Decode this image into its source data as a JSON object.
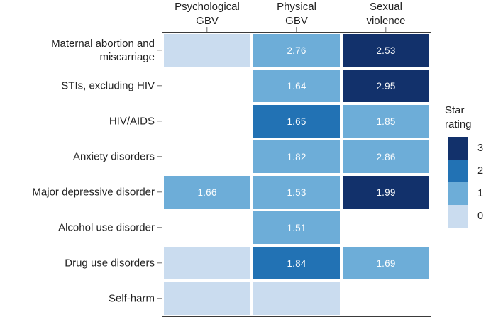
{
  "chart_data": {
    "type": "heatmap",
    "title": "",
    "columns": [
      "Psychological\nGBV",
      "Physical\nGBV",
      "Sexual\nviolence"
    ],
    "rows": [
      "Maternal abortion and\nmiscarriage",
      "STIs, excluding HIV",
      "HIV/AIDS",
      "Anxiety disorders",
      "Major depressive disorder",
      "Alcohol use disorder",
      "Drug use disorders",
      "Self-harm"
    ],
    "cells": [
      [
        {
          "rating": 0,
          "value": null
        },
        {
          "rating": 1,
          "value": 2.76
        },
        {
          "rating": 3,
          "value": 2.53
        }
      ],
      [
        null,
        {
          "rating": 1,
          "value": 1.64
        },
        {
          "rating": 3,
          "value": 2.95
        }
      ],
      [
        null,
        {
          "rating": 2,
          "value": 1.65
        },
        {
          "rating": 1,
          "value": 1.85
        }
      ],
      [
        null,
        {
          "rating": 1,
          "value": 1.82
        },
        {
          "rating": 1,
          "value": 2.86
        }
      ],
      [
        {
          "rating": 1,
          "value": 1.66
        },
        {
          "rating": 1,
          "value": 1.53
        },
        {
          "rating": 3,
          "value": 1.99
        }
      ],
      [
        null,
        {
          "rating": 1,
          "value": 1.51
        },
        null
      ],
      [
        {
          "rating": 0,
          "value": null
        },
        {
          "rating": 2,
          "value": 1.84
        },
        {
          "rating": 1,
          "value": 1.69
        }
      ],
      [
        {
          "rating": 0,
          "value": null
        },
        {
          "rating": 0,
          "value": null
        },
        null
      ]
    ],
    "legend": {
      "title": "Star rating",
      "levels": [
        3,
        2,
        1,
        0
      ]
    },
    "colors": {
      "0": "#cadcef",
      "1": "#6dadd8",
      "2": "#2272b4",
      "3": "#12316b"
    },
    "value_text_color": "#ffffff",
    "empty_color": "#ffffff",
    "layout": {
      "grid": "off",
      "legend_position": "right",
      "axis_ticks": "top-left"
    }
  }
}
